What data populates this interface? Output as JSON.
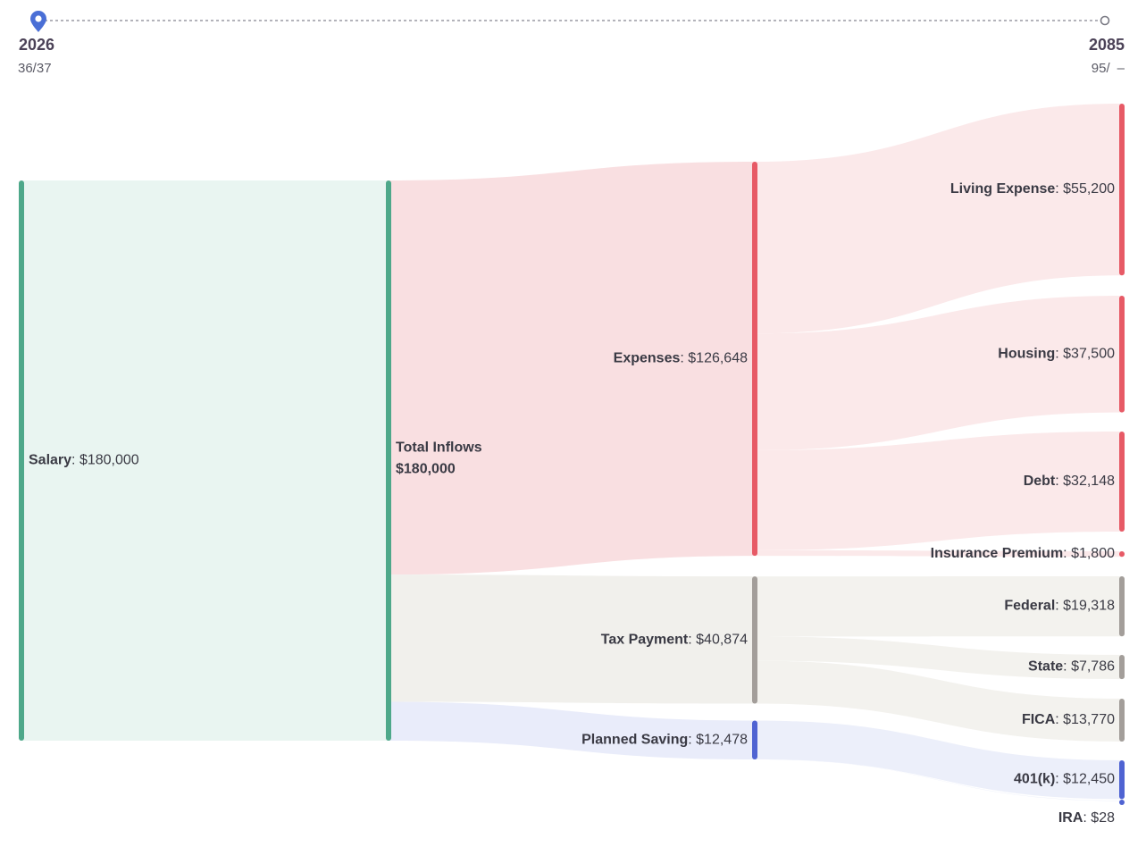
{
  "timeline": {
    "start_year": "2026",
    "start_age": "36/37",
    "end_year": "2085",
    "end_age": "95/",
    "end_age_suffix": "–"
  },
  "colors": {
    "accent": "#4a6fd6",
    "income": "#4ea88a",
    "expense": "#e75a66",
    "tax": "#a39e9a",
    "saving": "#4f63d2"
  },
  "chart_data": {
    "type": "sankey",
    "title": "",
    "nodes": [
      {
        "id": "salary",
        "name": "Salary",
        "value": 180000,
        "value_label": "$180,000",
        "group": "income",
        "column": 0
      },
      {
        "id": "total",
        "name": "Total Inflows",
        "value": 180000,
        "value_label": "$180,000",
        "group": "income",
        "column": 1
      },
      {
        "id": "expenses",
        "name": "Expenses",
        "value": 126648,
        "value_label": "$126,648",
        "group": "expense",
        "column": 2
      },
      {
        "id": "tax",
        "name": "Tax Payment",
        "value": 40874,
        "value_label": "$40,874",
        "group": "tax",
        "column": 2
      },
      {
        "id": "saving",
        "name": "Planned Saving",
        "value": 12478,
        "value_label": "$12,478",
        "group": "saving",
        "column": 2
      },
      {
        "id": "living",
        "name": "Living Expense",
        "value": 55200,
        "value_label": "$55,200",
        "group": "expense",
        "column": 3
      },
      {
        "id": "housing",
        "name": "Housing",
        "value": 37500,
        "value_label": "$37,500",
        "group": "expense",
        "column": 3
      },
      {
        "id": "debt",
        "name": "Debt",
        "value": 32148,
        "value_label": "$32,148",
        "group": "expense",
        "column": 3
      },
      {
        "id": "insurance",
        "name": "Insurance Premium",
        "value": 1800,
        "value_label": "$1,800",
        "group": "expense",
        "column": 3
      },
      {
        "id": "federal",
        "name": "Federal",
        "value": 19318,
        "value_label": "$19,318",
        "group": "tax",
        "column": 3
      },
      {
        "id": "state",
        "name": "State",
        "value": 7786,
        "value_label": "$7,786",
        "group": "tax",
        "column": 3
      },
      {
        "id": "fica",
        "name": "FICA",
        "value": 13770,
        "value_label": "$13,770",
        "group": "tax",
        "column": 3
      },
      {
        "id": "k401",
        "name": "401(k)",
        "value": 12450,
        "value_label": "$12,450",
        "group": "saving",
        "column": 3
      },
      {
        "id": "ira",
        "name": "IRA",
        "value": 28,
        "value_label": "$28",
        "group": "saving",
        "column": 3
      }
    ],
    "links": [
      {
        "source": "salary",
        "target": "total",
        "value": 180000
      },
      {
        "source": "total",
        "target": "expenses",
        "value": 126648
      },
      {
        "source": "total",
        "target": "tax",
        "value": 40874
      },
      {
        "source": "total",
        "target": "saving",
        "value": 12478
      },
      {
        "source": "expenses",
        "target": "living",
        "value": 55200
      },
      {
        "source": "expenses",
        "target": "housing",
        "value": 37500
      },
      {
        "source": "expenses",
        "target": "debt",
        "value": 32148
      },
      {
        "source": "expenses",
        "target": "insurance",
        "value": 1800
      },
      {
        "source": "tax",
        "target": "federal",
        "value": 19318
      },
      {
        "source": "tax",
        "target": "state",
        "value": 7786
      },
      {
        "source": "tax",
        "target": "fica",
        "value": 13770
      },
      {
        "source": "saving",
        "target": "k401",
        "value": 12450
      },
      {
        "source": "saving",
        "target": "ira",
        "value": 28
      }
    ]
  }
}
